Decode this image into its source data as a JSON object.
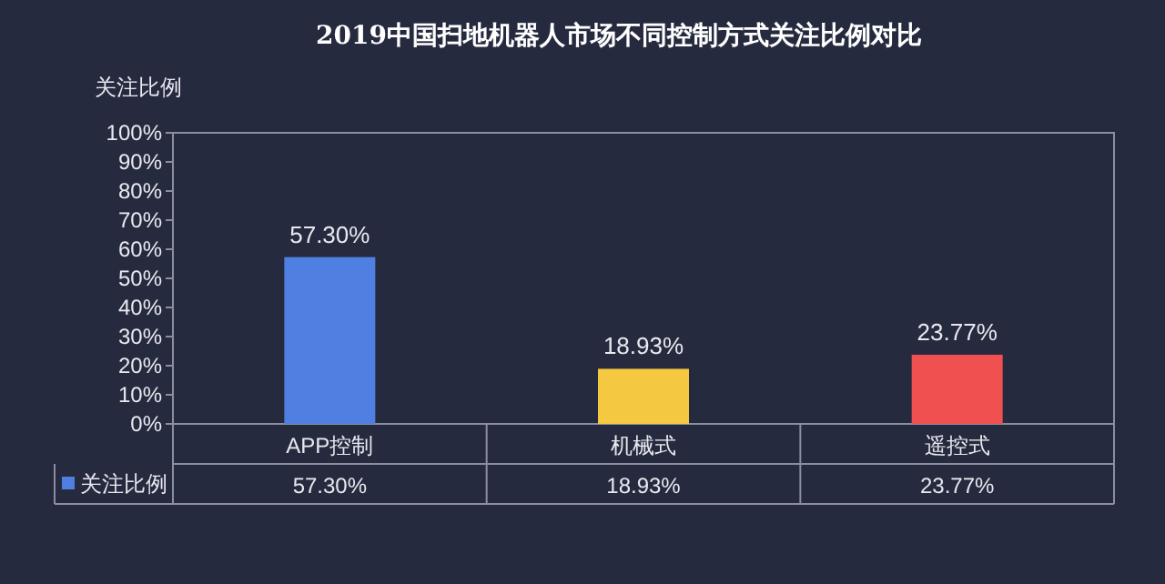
{
  "chart_data": {
    "type": "bar",
    "title": "2019中国扫地机器人市场不同控制方式关注比例对比",
    "ylabel": "关注比例",
    "categories": [
      "APP控制",
      "机械式",
      "遥控式"
    ],
    "series": [
      {
        "name": "关注比例",
        "color": "#4f7fe0",
        "colors": [
          "#4f7fe0",
          "#f5c842",
          "#f05050"
        ],
        "values": [
          57.3,
          18.93,
          23.77
        ],
        "value_labels": [
          "57.30%",
          "18.93%",
          "23.77%"
        ]
      }
    ],
    "ylim": [
      0,
      100
    ],
    "yticks": [
      {
        "value": 0,
        "label": "0%"
      },
      {
        "value": 10,
        "label": "10%"
      },
      {
        "value": 20,
        "label": "20%"
      },
      {
        "value": 30,
        "label": "30%"
      },
      {
        "value": 40,
        "label": "40%"
      },
      {
        "value": 50,
        "label": "50%"
      },
      {
        "value": 60,
        "label": "60%"
      },
      {
        "value": 70,
        "label": "70%"
      },
      {
        "value": 80,
        "label": "80%"
      },
      {
        "value": 90,
        "label": "90%"
      },
      {
        "value": 100,
        "label": "100%"
      }
    ],
    "grid": false
  }
}
